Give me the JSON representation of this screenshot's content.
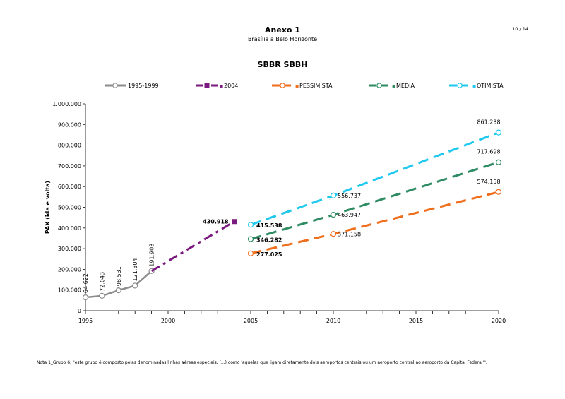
{
  "page": {
    "title": "Anexo 1",
    "subtitle": "Brasília a Belo Horizonte",
    "page_number": "10 / 14",
    "footnote": "Nota 1_Grupo 6: \"este grupo é composto pelas denominadas linhas aéreas especiais, (...) como 'aquelas que ligam diretamente dois aeroportos centrais ou um aeroporto central ao aeroporto da Capital Federal'\"."
  },
  "chart_data": {
    "type": "line",
    "title": "SBBR SBBH",
    "xlabel": "",
    "ylabel": "PAX (ida e volta)",
    "xlim": [
      1995,
      2020
    ],
    "ylim": [
      0,
      1000000
    ],
    "x_ticks": [
      1995,
      2000,
      2005,
      2010,
      2015,
      2020
    ],
    "y_ticks": [
      0,
      100000,
      200000,
      300000,
      400000,
      500000,
      600000,
      700000,
      800000,
      900000,
      1000000
    ],
    "y_tick_labels": [
      "0",
      "100.000",
      "200.000",
      "300.000",
      "400.000",
      "500.000",
      "600.000",
      "700.000",
      "800.000",
      "900.000",
      "1.000.000"
    ],
    "grid": false,
    "legend_position": "top",
    "series": [
      {
        "name": "1995-1999",
        "color": "#8c8c8c",
        "style": "solid",
        "marker": "circle",
        "points": [
          {
            "x": 1995,
            "y": 64622,
            "label": "64.622"
          },
          {
            "x": 1996,
            "y": 72043,
            "label": "72.043"
          },
          {
            "x": 1997,
            "y": 98531,
            "label": "98.531"
          },
          {
            "x": 1998,
            "y": 121304,
            "label": "121.304"
          },
          {
            "x": 1999,
            "y": 191903,
            "label": "191.903"
          }
        ]
      },
      {
        "name": "2004",
        "legend_prefix": "▪",
        "color": "#7b1a7e",
        "style": "dashdot",
        "marker": "square",
        "points": [
          {
            "x": 1999,
            "y": 191903,
            "label": ""
          },
          {
            "x": 2004,
            "y": 430918,
            "label": "430.918"
          }
        ]
      },
      {
        "name": "PESSIMISTA",
        "legend_prefix": "▪",
        "color": "#ef6e1c",
        "style": "dashed",
        "marker": "circle",
        "points": [
          {
            "x": 2005,
            "y": 277025,
            "label": "277.025"
          },
          {
            "x": 2010,
            "y": 371158,
            "label": "371.158"
          },
          {
            "x": 2020,
            "y": 574158,
            "label": "574.158"
          }
        ]
      },
      {
        "name": "MÉDIA",
        "legend_prefix": "▪",
        "color": "#2e8b62",
        "style": "dashed",
        "marker": "circle",
        "points": [
          {
            "x": 2005,
            "y": 346282,
            "label": "346.282"
          },
          {
            "x": 2010,
            "y": 463947,
            "label": "463.947"
          },
          {
            "x": 2020,
            "y": 717698,
            "label": "717.698"
          }
        ]
      },
      {
        "name": "OTIMISTA",
        "legend_prefix": "▪",
        "color": "#1ec8ee",
        "style": "dashed",
        "marker": "circle",
        "points": [
          {
            "x": 2005,
            "y": 415538,
            "label": "415.538"
          },
          {
            "x": 2010,
            "y": 556737,
            "label": "556.737"
          },
          {
            "x": 2020,
            "y": 861238,
            "label": "861.238"
          }
        ]
      }
    ]
  }
}
